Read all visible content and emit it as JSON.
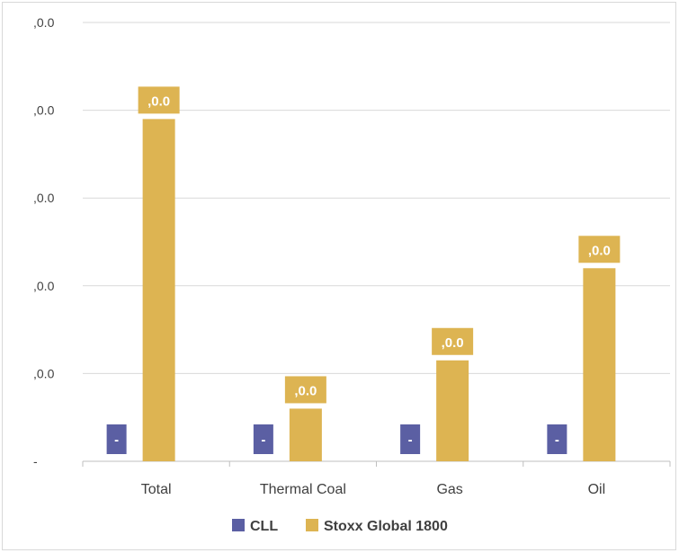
{
  "chart_data": {
    "type": "bar",
    "categories": [
      "Total",
      "Thermal Coal",
      "Gas",
      "Oil"
    ],
    "series": [
      {
        "name": "CLL",
        "values": [
          0,
          0,
          0,
          0
        ],
        "labels": [
          "-",
          "-",
          "-",
          "-"
        ],
        "color": "#5b5fa3"
      },
      {
        "name": "Stoxx Global 1800",
        "values": [
          3.9,
          0.6,
          1.15,
          2.2
        ],
        "labels": [
          ",0.0",
          ",0.0",
          ",0.0",
          ",0.0"
        ],
        "color": "#ddb452"
      }
    ],
    "y_tick_labels": [
      "-",
      ",0.0",
      ",0.0",
      ",0.0",
      ",0.0",
      ",0.0"
    ],
    "ylim": [
      0,
      5
    ],
    "grid": true,
    "legend": "bottom"
  }
}
